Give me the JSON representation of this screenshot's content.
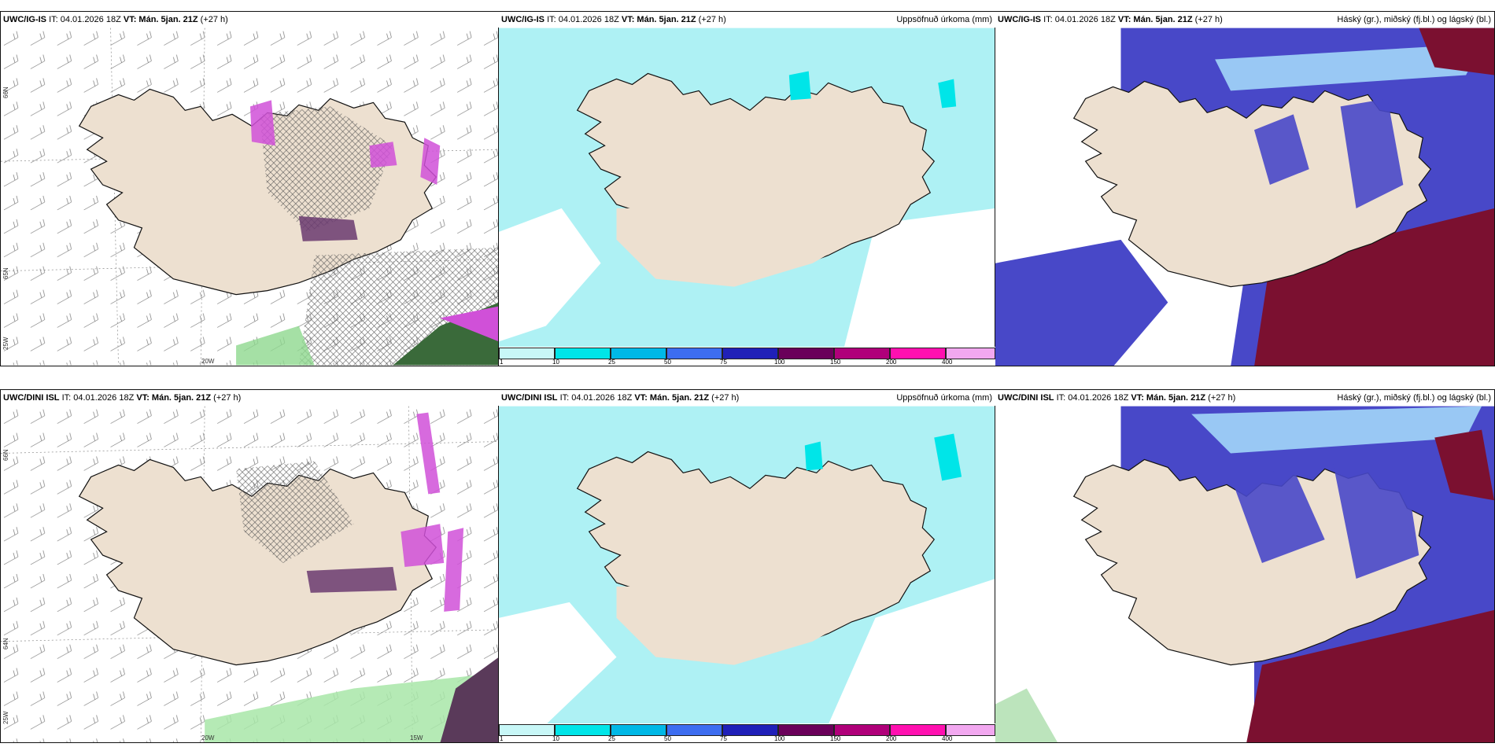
{
  "rows": [
    {
      "model": "UWC/IG-IS",
      "it": "IT: 04.01.2026 18Z",
      "vt": "VT: Mán. 5jan. 21Z",
      "step": "(+27 h)"
    },
    {
      "model": "UWC/DINI ISL",
      "it": "IT: 04.01.2026 18Z",
      "vt": "VT: Mán. 5jan. 21Z",
      "step": "(+27 h)"
    }
  ],
  "titles": {
    "precip": "Uppsöfnuð úrkoma (mm)",
    "clouds": "Háský (gr.), miðský (fj.bl.) og lágský (bl.)"
  },
  "axis": {
    "lat66": "66N",
    "lat64": "64N",
    "lat65": "65N",
    "lon25": "25W",
    "lon20": "20W",
    "lon15": "15W"
  },
  "colorbar": {
    "ticks": [
      "1",
      "10",
      "25",
      "50",
      "75",
      "100",
      "150",
      "200",
      "400"
    ],
    "colors": [
      "#c8f7f7",
      "#00e5e8",
      "#00b8e6",
      "#3d6df0",
      "#2020b8",
      "#6a005a",
      "#b0007a",
      "#ff10b0",
      "#f2a8f0"
    ]
  },
  "colors": {
    "land": "#ede0d0",
    "precip_sea": "#aef1f4",
    "cloud_high": "#4848c8",
    "cloud_mid": "#7b1030",
    "snow_pink": "#d050d8"
  }
}
